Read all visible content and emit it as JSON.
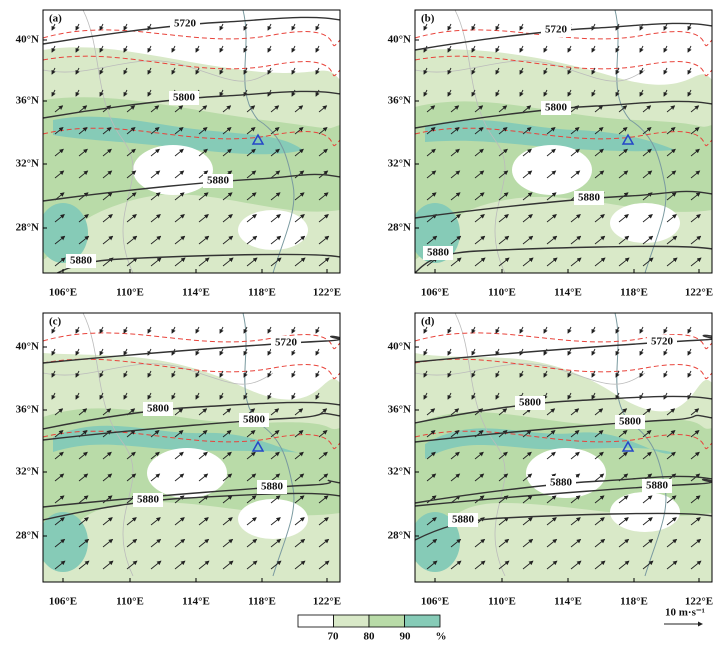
{
  "panels": [
    {
      "label": "(a)",
      "contour_labels": [
        "5720",
        "5800",
        "5880",
        "5880"
      ]
    },
    {
      "label": "(b)",
      "contour_labels": [
        "5720",
        "5800",
        "5880",
        "5880"
      ]
    },
    {
      "label": "(c)",
      "contour_labels": [
        "5720",
        "5800",
        "5800",
        "5880",
        "5880"
      ]
    },
    {
      "label": "(d)",
      "contour_labels": [
        "5720",
        "5800",
        "5800",
        "5880",
        "5880",
        "5880"
      ]
    }
  ],
  "lat_ticks": [
    "40°N",
    "36°N",
    "32°N",
    "28°N"
  ],
  "lon_ticks": [
    "106°E",
    "110°E",
    "114°E",
    "118°E",
    "122°E"
  ],
  "colorbar": {
    "labels": [
      "70",
      "80",
      "90",
      "%"
    ]
  },
  "scale_label": "10 m·s⁻¹"
}
